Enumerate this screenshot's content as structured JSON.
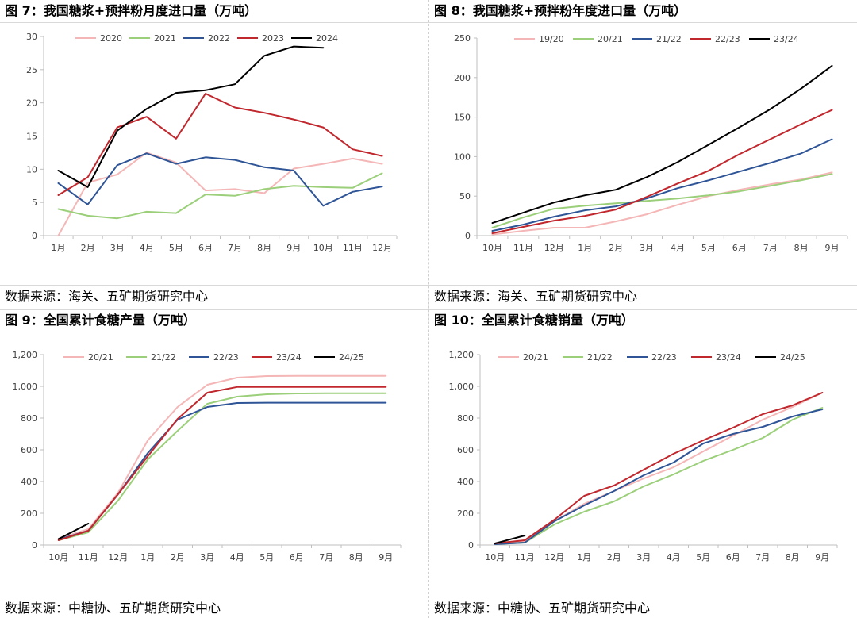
{
  "charts": [
    {
      "title": "图 7：我国糖浆+预拌粉月度进口量（万吨）",
      "source": "数据来源：海关、五矿期货研究中心"
    },
    {
      "title": "图 8：我国糖浆+预拌粉年度进口量（万吨）",
      "source": "数据来源：海关、五矿期货研究中心"
    },
    {
      "title": "图 9：全国累计食糖产量（万吨）",
      "source": "数据来源：中糖协、五矿期货研究中心"
    },
    {
      "title": "图 10：全国累计食糖销量（万吨）",
      "source": "数据来源：中糖协、五矿期货研究中心"
    }
  ],
  "chart_data": [
    {
      "type": "line",
      "title": "图 7：我国糖浆+预拌粉月度进口量（万吨）",
      "categories": [
        "1月",
        "2月",
        "3月",
        "4月",
        "5月",
        "6月",
        "7月",
        "8月",
        "9月",
        "10月",
        "11月",
        "12月"
      ],
      "ylim": [
        0,
        30
      ],
      "yticks": [
        0,
        5,
        10,
        15,
        20,
        25,
        30
      ],
      "ytick_labels": [
        "0",
        "5",
        "10",
        "15",
        "20",
        "25",
        "30"
      ],
      "legend": "top",
      "series": [
        {
          "name": "2020",
          "color": "#f4b6b6",
          "values": [
            0,
            8.0,
            9.2,
            12.5,
            11.0,
            6.8,
            7.0,
            6.4,
            10.1,
            10.8,
            11.6,
            10.8
          ]
        },
        {
          "name": "2021",
          "color": "#9bcf7a",
          "values": [
            4.0,
            3.0,
            2.6,
            3.6,
            3.4,
            6.2,
            6.0,
            7.0,
            7.5,
            7.3,
            7.2,
            9.4
          ]
        },
        {
          "name": "2022",
          "color": "#2f5597",
          "values": [
            7.9,
            4.7,
            10.6,
            12.4,
            10.8,
            11.8,
            11.4,
            10.3,
            9.8,
            4.5,
            6.6,
            7.4
          ]
        },
        {
          "name": "2023",
          "color": "#c0282e",
          "values": [
            6.1,
            8.8,
            16.3,
            17.9,
            14.6,
            21.4,
            19.3,
            18.5,
            17.5,
            16.3,
            13.0,
            12.0
          ]
        },
        {
          "name": "2024",
          "color": "#000000",
          "values": [
            9.8,
            7.3,
            15.8,
            19.1,
            21.5,
            21.9,
            22.8,
            27.1,
            28.5,
            28.3,
            null,
            null
          ]
        }
      ]
    },
    {
      "type": "line",
      "title": "图 8：我国糖浆+预拌粉年度进口量（万吨）",
      "categories": [
        "10月",
        "11月",
        "12月",
        "1月",
        "2月",
        "3月",
        "4月",
        "5月",
        "6月",
        "7月",
        "8月",
        "9月"
      ],
      "ylim": [
        0,
        250
      ],
      "yticks": [
        0,
        50,
        100,
        150,
        200,
        250
      ],
      "ytick_labels": [
        "0",
        "50",
        "100",
        "150",
        "200",
        "250"
      ],
      "legend": "top",
      "series": [
        {
          "name": "19/20",
          "color": "#f4b6b6",
          "values": [
            1.5,
            6,
            10,
            10,
            18,
            27,
            39,
            50,
            58,
            65,
            71,
            80
          ]
        },
        {
          "name": "20/21",
          "color": "#9bcf7a",
          "values": [
            10,
            23,
            34,
            38,
            41,
            44,
            47,
            51,
            56,
            63,
            70,
            78
          ]
        },
        {
          "name": "21/22",
          "color": "#2f5597",
          "values": [
            6,
            14,
            24,
            32,
            37,
            47,
            60,
            70,
            81,
            92,
            104,
            122
          ]
        },
        {
          "name": "22/23",
          "color": "#c0282e",
          "values": [
            3,
            11,
            19,
            25,
            33,
            49,
            66,
            82,
            103,
            122,
            141,
            159
          ]
        },
        {
          "name": "23/24",
          "color": "#000000",
          "values": [
            16,
            29,
            42,
            51,
            58,
            74,
            93,
            115,
            137,
            160,
            186,
            215
          ]
        }
      ]
    },
    {
      "type": "line",
      "title": "图 9：全国累计食糖产量（万吨）",
      "categories": [
        "10月",
        "11月",
        "12月",
        "1月",
        "2月",
        "3月",
        "4月",
        "5月",
        "6月",
        "7月",
        "8月",
        "9月"
      ],
      "ylim": [
        0,
        1200
      ],
      "yticks": [
        0,
        200,
        400,
        600,
        800,
        1000,
        1200
      ],
      "ytick_labels": [
        "0",
        "200",
        "400",
        "600",
        "800",
        "1,000",
        "1,200"
      ],
      "legend": "top",
      "series": [
        {
          "name": "20/21",
          "color": "#f4b6b6",
          "values": [
            40,
            100,
            330,
            660,
            870,
            1010,
            1055,
            1065,
            1066,
            1066,
            1066,
            1066
          ]
        },
        {
          "name": "21/22",
          "color": "#9bcf7a",
          "values": [
            30,
            80,
            280,
            540,
            720,
            890,
            935,
            950,
            955,
            956,
            956,
            956
          ]
        },
        {
          "name": "22/23",
          "color": "#2f5597",
          "values": [
            35,
            90,
            320,
            580,
            790,
            870,
            895,
            897,
            897,
            897,
            897,
            897
          ]
        },
        {
          "name": "23/24",
          "color": "#c0282e",
          "values": [
            30,
            90,
            320,
            560,
            795,
            960,
            996,
            996,
            996,
            996,
            996,
            996
          ]
        },
        {
          "name": "24/25",
          "color": "#000000",
          "values": [
            38,
            135,
            null,
            null,
            null,
            null,
            null,
            null,
            null,
            null,
            null,
            null
          ]
        }
      ]
    },
    {
      "type": "line",
      "title": "图 10：全国累计食糖销量（万吨）",
      "categories": [
        "10月",
        "11月",
        "12月",
        "1月",
        "2月",
        "3月",
        "4月",
        "5月",
        "6月",
        "7月",
        "8月",
        "9月"
      ],
      "ylim": [
        0,
        1200
      ],
      "yticks": [
        0,
        200,
        400,
        600,
        800,
        1000,
        1200
      ],
      "ytick_labels": [
        "0",
        "200",
        "400",
        "600",
        "800",
        "1,000",
        "1,200"
      ],
      "legend": "top",
      "series": [
        {
          "name": "20/21",
          "color": "#f4b6b6",
          "values": [
            10,
            20,
            150,
            260,
            340,
            420,
            490,
            590,
            690,
            790,
            870,
            960
          ]
        },
        {
          "name": "21/22",
          "color": "#9bcf7a",
          "values": [
            5,
            15,
            130,
            210,
            275,
            370,
            445,
            530,
            600,
            675,
            790,
            865
          ]
        },
        {
          "name": "22/23",
          "color": "#2f5597",
          "values": [
            5,
            15,
            150,
            250,
            340,
            440,
            520,
            640,
            700,
            745,
            810,
            855
          ]
        },
        {
          "name": "23/24",
          "color": "#c0282e",
          "values": [
            10,
            30,
            160,
            310,
            375,
            475,
            575,
            660,
            740,
            825,
            880,
            960
          ]
        },
        {
          "name": "24/25",
          "color": "#000000",
          "values": [
            10,
            60,
            null,
            null,
            null,
            null,
            null,
            null,
            null,
            null,
            null,
            null
          ]
        }
      ]
    }
  ]
}
